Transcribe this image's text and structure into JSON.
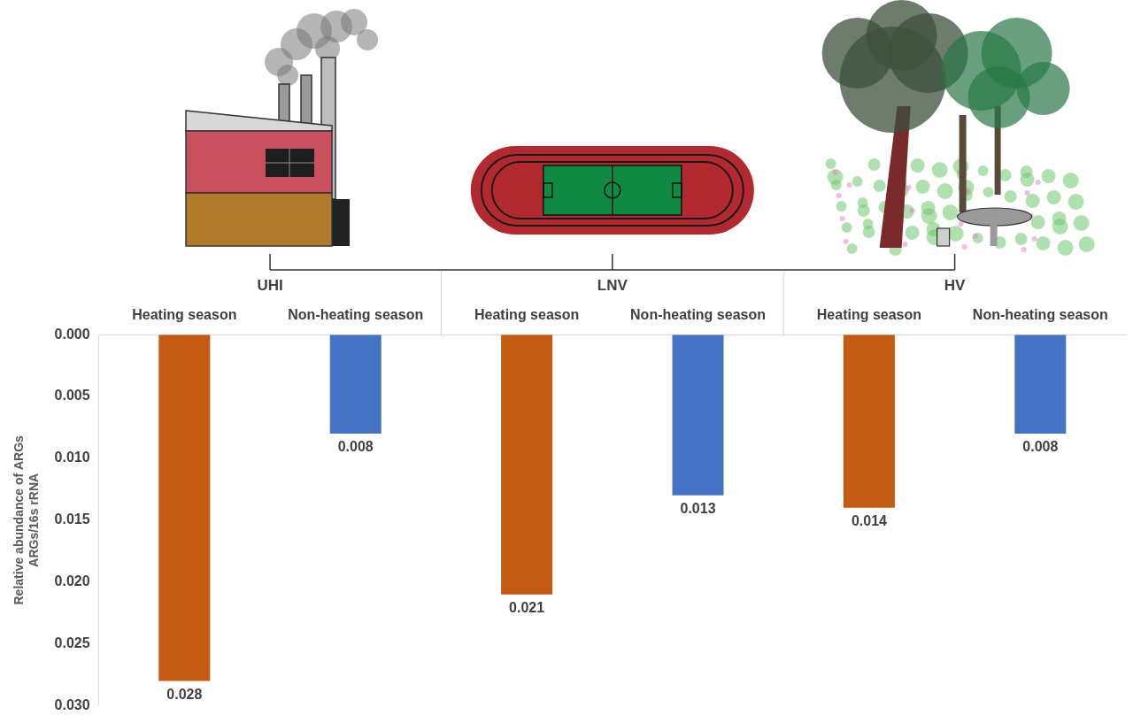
{
  "chart_data": {
    "type": "bar",
    "groups": [
      "UHI",
      "LNV",
      "HV"
    ],
    "categories": [
      "Heating season",
      "Non-heating season",
      "Heating season",
      "Non-heating season",
      "Heating season",
      "Non-heating season"
    ],
    "values": [
      0.028,
      0.008,
      0.021,
      0.013,
      0.014,
      0.008
    ],
    "colors": [
      "#c55a11",
      "#4472c4",
      "#c55a11",
      "#4472c4",
      "#c55a11",
      "#4472c4"
    ],
    "ylabel": [
      "Relative abundance of ARGs",
      "ARGs/16s rRNA"
    ],
    "ylim": [
      0.03,
      0
    ],
    "yticks": [
      {
        "value": 0,
        "label": "0.000"
      },
      {
        "value": 0.005,
        "label": "0.005"
      },
      {
        "value": 0.01,
        "label": "0.010"
      },
      {
        "value": 0.015,
        "label": "0.015"
      },
      {
        "value": 0.02,
        "label": "0.020"
      },
      {
        "value": 0.025,
        "label": "0.025"
      },
      {
        "value": 0.03,
        "label": "0.030"
      }
    ],
    "grid": false,
    "data_labels": true
  }
}
